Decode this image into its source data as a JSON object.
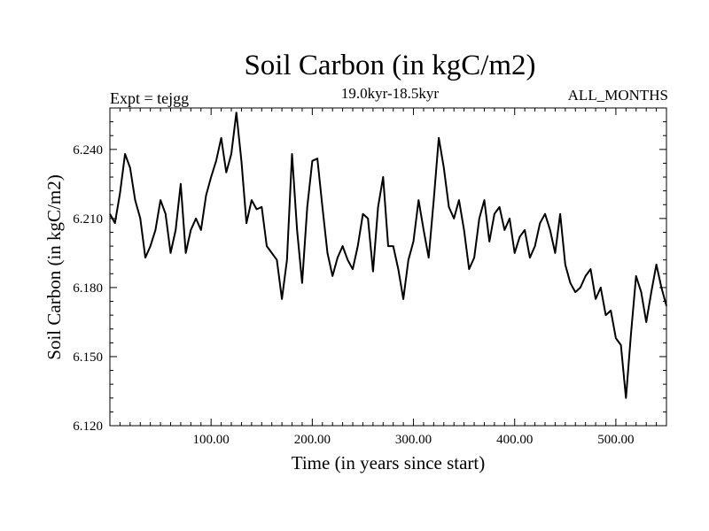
{
  "header": {
    "expt": "Expt = tejgg",
    "months": "ALL_MONTHS"
  },
  "chart_data": {
    "type": "line",
    "title": "Soil Carbon (in kgC/m2)",
    "subtitle": "19.0kyr-18.5kyr",
    "xlabel": "Time (in years since start)",
    "ylabel": "Soil Carbon (in kgC/m2)",
    "xlim": [
      0,
      550
    ],
    "ylim": [
      6.12,
      6.258
    ],
    "x_ticks": [
      100,
      200,
      300,
      400,
      500
    ],
    "x_tick_labels": [
      "100.00",
      "200.00",
      "300.00",
      "400.00",
      "500.00"
    ],
    "y_ticks": [
      6.12,
      6.15,
      6.18,
      6.21,
      6.24
    ],
    "y_tick_labels": [
      "6.120",
      "6.150",
      "6.180",
      "6.210",
      "6.240"
    ],
    "grid": false,
    "series": [
      {
        "name": "Soil Carbon",
        "x": [
          0,
          5,
          10,
          15,
          20,
          25,
          30,
          35,
          40,
          45,
          50,
          55,
          60,
          65,
          70,
          75,
          80,
          85,
          90,
          95,
          100,
          105,
          110,
          115,
          120,
          125,
          130,
          135,
          140,
          145,
          150,
          155,
          160,
          165,
          170,
          175,
          180,
          185,
          190,
          195,
          200,
          205,
          210,
          215,
          220,
          225,
          230,
          235,
          240,
          245,
          250,
          255,
          260,
          265,
          270,
          275,
          280,
          285,
          290,
          295,
          300,
          305,
          310,
          315,
          320,
          325,
          330,
          335,
          340,
          345,
          350,
          355,
          360,
          365,
          370,
          375,
          380,
          385,
          390,
          395,
          400,
          405,
          410,
          415,
          420,
          425,
          430,
          435,
          440,
          445,
          450,
          455,
          460,
          465,
          470,
          475,
          480,
          485,
          490,
          495,
          500,
          505,
          510,
          515,
          520,
          525,
          530,
          535,
          540,
          545,
          550
        ],
        "values": [
          6.212,
          6.208,
          6.221,
          6.238,
          6.232,
          6.218,
          6.21,
          6.193,
          6.198,
          6.205,
          6.218,
          6.212,
          6.195,
          6.205,
          6.225,
          6.195,
          6.205,
          6.21,
          6.205,
          6.22,
          6.228,
          6.235,
          6.245,
          6.23,
          6.238,
          6.256,
          6.235,
          6.208,
          6.218,
          6.214,
          6.215,
          6.198,
          6.195,
          6.192,
          6.175,
          6.192,
          6.238,
          6.205,
          6.182,
          6.215,
          6.235,
          6.236,
          6.215,
          6.195,
          6.185,
          6.193,
          6.198,
          6.192,
          6.188,
          6.198,
          6.212,
          6.21,
          6.187,
          6.215,
          6.228,
          6.198,
          6.198,
          6.188,
          6.175,
          6.192,
          6.2,
          6.218,
          6.205,
          6.193,
          6.218,
          6.245,
          6.232,
          6.215,
          6.21,
          6.218,
          6.205,
          6.188,
          6.193,
          6.21,
          6.218,
          6.2,
          6.212,
          6.215,
          6.205,
          6.21,
          6.195,
          6.202,
          6.205,
          6.193,
          6.198,
          6.208,
          6.212,
          6.205,
          6.195,
          6.212,
          6.19,
          6.182,
          6.178,
          6.18,
          6.185,
          6.188,
          6.175,
          6.18,
          6.168,
          6.17,
          6.158,
          6.155,
          6.132,
          6.16,
          6.185,
          6.178,
          6.165,
          6.178,
          6.19,
          6.18,
          6.172
        ]
      }
    ]
  }
}
